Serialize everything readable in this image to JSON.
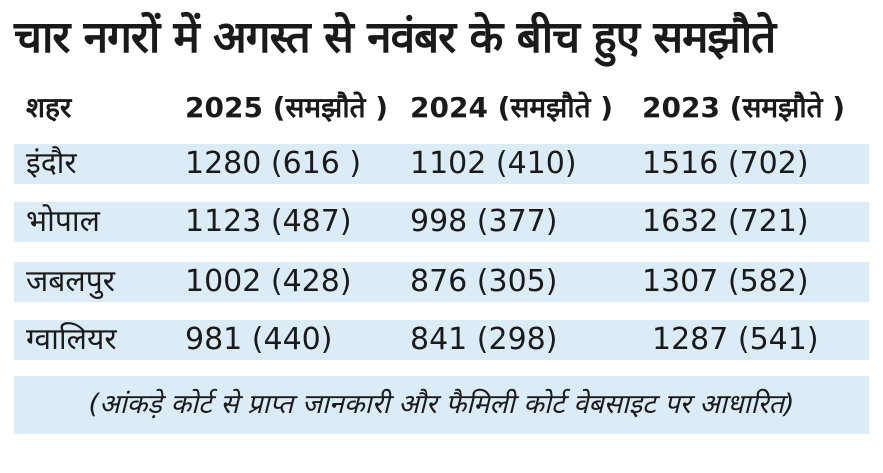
{
  "title": "चार नगरों में अगस्त से नवंबर के बीच हुए समझौते",
  "table": {
    "headers": [
      "शहर",
      "2025 (समझौते )",
      "2024 (समझौते )",
      "2023 (समझौते )"
    ],
    "rows": [
      [
        "इंदौर",
        "1280 (616 )",
        "1102 (410)",
        "1516 (702)"
      ],
      [
        "भोपाल",
        "1123 (487)",
        "998 (377)",
        "1632 (721)"
      ],
      [
        "जबलपुर",
        "1002 (428)",
        "876 (305)",
        "1307 (582)"
      ],
      [
        "ग्वालियर",
        "981 (440)",
        "841 (298)",
        "1287 (541)"
      ]
    ]
  },
  "footnote": "(आंकड़े कोर्ट से प्राप्त जानकारी और फैमिली कोर्ट वेबसाइट पर आधारित)",
  "colors": {
    "band": "#dcecf7",
    "text": "#1a1a1a"
  }
}
